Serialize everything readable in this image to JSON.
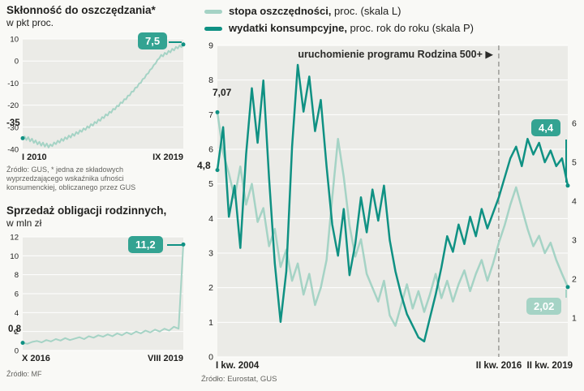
{
  "colors": {
    "light": "#a5d3c5",
    "dark": "#0f9183",
    "badge_dark": "#33a392",
    "badge_light": "#a5d3c5",
    "plot_bg": "#ebebe7",
    "grid": "#ffffff",
    "dashed": "#9c9c98",
    "text": "#222220",
    "muted": "#63635f"
  },
  "left_top": {
    "title": "Skłonność do oszczędzania*",
    "subtitle": "w pkt proc.",
    "start_label": "-35",
    "end_badge": "7,5",
    "x_left": "I 2010",
    "x_right": "IX 2019",
    "source_lines": {
      "0": "Źródło: GUS, * jedna ze składowych",
      "1": "wyprzedzającego wskaźnika ufności",
      "2": "konsumenckiej, obliczanego przez GUS"
    }
  },
  "left_bottom": {
    "title": "Sprzedaż obligacji rodzinnych,",
    "subtitle": "w mln zł",
    "start_label": "0,8",
    "end_badge": "11,2",
    "x_left": "X 2016",
    "x_right": "VIII 2019",
    "source": "Źródło: MF"
  },
  "main": {
    "legend": [
      {
        "name": "stopa oszczędności,",
        "rest": " proc. (skala L)",
        "color": "light"
      },
      {
        "name": "wydatki konsumpcyjne,",
        "rest": " proc. rok do roku (skala P)",
        "color": "dark"
      }
    ],
    "annotation": "uruchomienie programu Rodzina 500+ ",
    "annotation_marker": "▶",
    "start_label_light": "7,07",
    "start_label_dark": "4,8",
    "end_badge_dark": "4,4",
    "end_badge_light": "2,02",
    "x_left": "I kw. 2004",
    "x_mid": "II kw. 2016",
    "x_right": "II kw. 2019",
    "source": "Źródło: Eurostat, GUS"
  },
  "chart_data": [
    {
      "id": "propensity",
      "type": "line",
      "title": "Skłonność do oszczędzania, w pkt proc.",
      "x_range": [
        "I 2010",
        "IX 2019"
      ],
      "axes": {
        "left": {
          "min": -40,
          "max": 10,
          "ticks": [
            10,
            0,
            -10,
            -20,
            -30,
            -40
          ]
        }
      },
      "series": [
        {
          "name": "skłonność do oszczędzania",
          "axis": "left",
          "color": "light",
          "stroke": 2,
          "dot_start": true,
          "dot_end": true,
          "dot_color": "dark",
          "values": [
            -35,
            -34.2,
            -35.8,
            -34.5,
            -36.4,
            -35.2,
            -37.1,
            -36,
            -37.8,
            -36.6,
            -38.4,
            -37,
            -38.8,
            -37.4,
            -39.2,
            -37.8,
            -38.6,
            -36.9,
            -37.7,
            -36.1,
            -37,
            -35.3,
            -36.2,
            -34.6,
            -35.4,
            -33.8,
            -34.7,
            -33,
            -33.9,
            -32.2,
            -33,
            -31.4,
            -32.1,
            -30.5,
            -31.2,
            -29.6,
            -30.3,
            -28.6,
            -29.3,
            -27.6,
            -28.2,
            -26.5,
            -27.1,
            -25.4,
            -25.9,
            -24.2,
            -24.7,
            -23,
            -23.4,
            -21.7,
            -22,
            -20.3,
            -20.5,
            -18.8,
            -19,
            -17.3,
            -17.4,
            -15.7,
            -15.6,
            -13.9,
            -13.8,
            -12.1,
            -11.9,
            -10.2,
            -9.9,
            -8.2,
            -7.8,
            -6.1,
            -5.6,
            -4,
            -3.4,
            -1.8,
            -1.1,
            0.5,
            1.2,
            2.8,
            2.1,
            3.7,
            3,
            4.6,
            3.9,
            5.5,
            4.8,
            6.4,
            5.7,
            7.1,
            6.3,
            7.5
          ]
        }
      ]
    },
    {
      "id": "bonds",
      "type": "line",
      "title": "Sprzedaż obligacji rodzinnych, w mln zł",
      "x_range": [
        "X 2016",
        "VIII 2019"
      ],
      "axes": {
        "left": {
          "min": 0,
          "max": 12,
          "ticks": [
            12,
            10,
            8,
            6,
            4,
            2,
            0
          ]
        }
      },
      "series": [
        {
          "name": "sprzedaż obligacji rodzinnych",
          "axis": "left",
          "color": "light",
          "stroke": 2,
          "dot_start": true,
          "dot_end": true,
          "dot_color": "dark",
          "values": [
            0.8,
            0.7,
            0.9,
            1.0,
            0.85,
            1.1,
            0.95,
            1.2,
            1.05,
            1.3,
            1.1,
            1.25,
            1.4,
            1.2,
            1.5,
            1.35,
            1.6,
            1.45,
            1.7,
            1.5,
            1.8,
            1.6,
            1.9,
            1.7,
            2.0,
            1.8,
            2.1,
            1.9,
            2.2,
            2.0,
            2.3,
            2.1,
            2.5,
            2.3,
            11.2
          ]
        }
      ]
    },
    {
      "id": "main",
      "type": "line",
      "title": "Stopa oszczędności i wydatki konsumpcyjne",
      "x_range": [
        "I kw. 2004",
        "II kw. 2019"
      ],
      "axes": {
        "left": {
          "min": 0,
          "max": 9,
          "ticks": [
            9,
            8,
            7,
            6,
            5,
            4,
            3,
            2,
            1,
            0
          ]
        },
        "right": {
          "min": 0,
          "max": 8,
          "ticks": [
            6,
            5,
            4,
            3,
            2,
            1
          ]
        }
      },
      "vline": {
        "pos": 0.803,
        "label": "uruchomienie programu Rodzina 500+"
      },
      "series": [
        {
          "name": "stopa oszczędności (skala L)",
          "axis": "left",
          "color": "light",
          "stroke": 2.5,
          "dot_start": true,
          "dot_end": true,
          "dot_color": "dark",
          "values": [
            7.07,
            5.9,
            5.3,
            4.6,
            5.5,
            4.4,
            5.0,
            3.9,
            4.3,
            3.2,
            3.7,
            2.6,
            3.1,
            2.2,
            2.7,
            1.8,
            2.4,
            1.5,
            2.0,
            2.8,
            4.6,
            6.3,
            5.2,
            3.8,
            2.9,
            3.4,
            2.4,
            2.0,
            1.6,
            2.2,
            1.2,
            0.9,
            1.5,
            2.1,
            1.4,
            1.9,
            1.3,
            1.8,
            2.4,
            1.7,
            2.2,
            1.6,
            2.1,
            2.5,
            1.9,
            2.4,
            2.8,
            2.2,
            2.7,
            3.3,
            3.8,
            4.4,
            4.9,
            4.3,
            3.7,
            3.2,
            3.5,
            3.0,
            3.3,
            2.8,
            2.4,
            2.02
          ]
        },
        {
          "name": "wydatki konsumpcyjne rok do roku (skala P)",
          "axis": "right",
          "color": "dark",
          "stroke": 2.5,
          "dot_start": true,
          "dot_end": true,
          "dot_color": "dark",
          "values": [
            4.8,
            5.9,
            3.6,
            4.4,
            2.8,
            5.2,
            6.9,
            5.5,
            7.1,
            4.6,
            2.4,
            0.9,
            2.2,
            5.4,
            7.5,
            6.3,
            7.2,
            5.8,
            6.6,
            4.9,
            3.4,
            2.6,
            3.8,
            2.1,
            2.9,
            4.1,
            3.2,
            4.3,
            3.5,
            4.4,
            3.0,
            2.2,
            1.6,
            1.1,
            0.8,
            0.5,
            0.4,
            1.0,
            1.6,
            2.3,
            3.1,
            2.7,
            3.4,
            2.9,
            3.6,
            3.1,
            3.8,
            3.3,
            3.7,
            4.1,
            4.6,
            5.1,
            5.4,
            4.9,
            5.6,
            5.2,
            5.5,
            5.0,
            5.3,
            4.9,
            5.1,
            4.4
          ]
        }
      ]
    }
  ]
}
